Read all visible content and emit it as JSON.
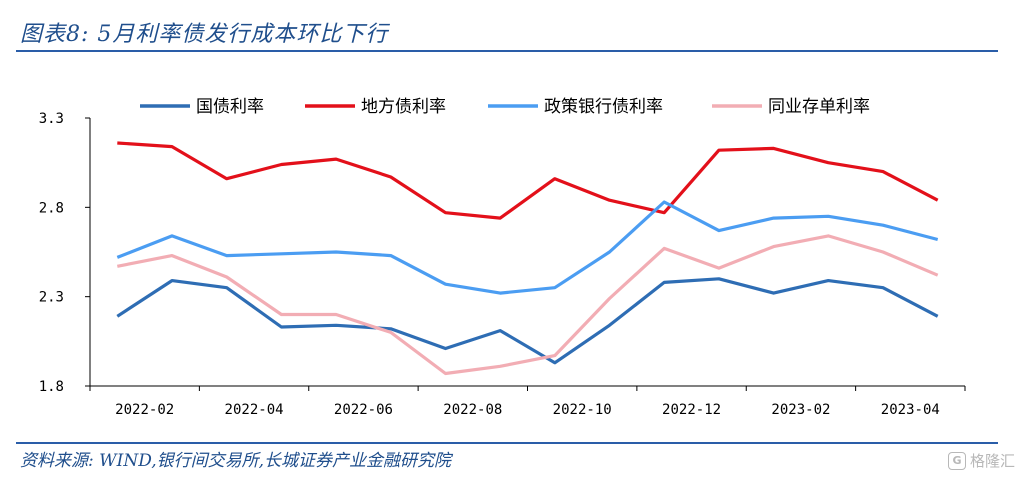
{
  "header": {
    "title": "图表8:  5月利率债发行成本环比下行"
  },
  "footer": {
    "source": "资料来源:  WIND,银行间交易所,长城证券产业金融研究院",
    "watermark": "格隆汇"
  },
  "chart_data": {
    "type": "line",
    "title": "",
    "xlabel": "",
    "ylabel": "",
    "ylim": [
      1.8,
      3.3
    ],
    "yticks": [
      "3.3",
      "2.8",
      "2.3",
      "1.8"
    ],
    "ytick_values": [
      3.3,
      2.8,
      2.3,
      1.8
    ],
    "xticks": [
      "2022-02",
      "2022-04",
      "2022-06",
      "2022-08",
      "2022-10",
      "2022-12",
      "2023-02",
      "2023-04"
    ],
    "categories": [
      "2022-02",
      "2022-03",
      "2022-04",
      "2022-05",
      "2022-06",
      "2022-07",
      "2022-08",
      "2022-09",
      "2022-10",
      "2022-11",
      "2022-12",
      "2023-01",
      "2023-02",
      "2023-03",
      "2023-04",
      "2023-05"
    ],
    "grid": false,
    "legend_position": "top",
    "series": [
      {
        "name": "国债利率",
        "color": "#2e6db4",
        "values": [
          2.19,
          2.39,
          2.35,
          2.13,
          2.14,
          2.12,
          2.01,
          2.11,
          1.93,
          2.14,
          2.38,
          2.4,
          2.32,
          2.39,
          2.35,
          2.19
        ]
      },
      {
        "name": "地方债利率",
        "color": "#e3101a",
        "values": [
          3.16,
          3.14,
          2.96,
          3.04,
          3.07,
          2.97,
          2.77,
          2.74,
          2.96,
          2.84,
          2.77,
          3.12,
          3.13,
          3.05,
          3.0,
          2.84
        ]
      },
      {
        "name": "政策银行债利率",
        "color": "#4b9df2",
        "values": [
          2.52,
          2.64,
          2.53,
          2.54,
          2.55,
          2.53,
          2.37,
          2.32,
          2.35,
          2.55,
          2.83,
          2.67,
          2.74,
          2.75,
          2.7,
          2.62
        ]
      },
      {
        "name": "同业存单利率",
        "color": "#f2adb4",
        "values": [
          2.47,
          2.53,
          2.41,
          2.2,
          2.2,
          2.1,
          1.87,
          1.91,
          1.97,
          2.29,
          2.57,
          2.46,
          2.58,
          2.64,
          2.55,
          2.42
        ]
      }
    ]
  }
}
